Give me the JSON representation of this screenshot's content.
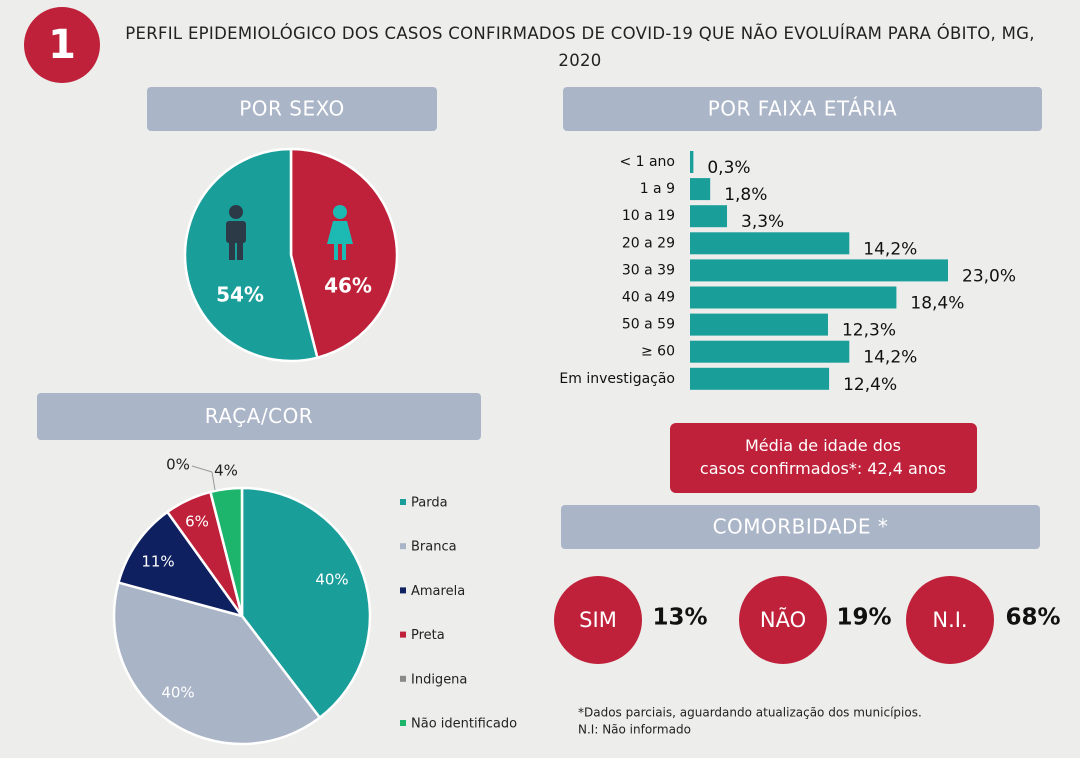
{
  "header": {
    "number": "1",
    "title": "PERFIL EPIDEMIOLÓGICO DOS CASOS CONFIRMADOS DE COVID-19 QUE NÃO EVOLUÍRAM PARA ÓBITO, MG, 2020"
  },
  "chart_data": [
    {
      "type": "pie",
      "title": "POR SEXO",
      "values": [
        46,
        54
      ],
      "value_labels": [
        "46%",
        "54%"
      ],
      "colors": [
        "#c0213a",
        "#1a9e9a"
      ]
    },
    {
      "type": "barh",
      "title": "POR FAIXA ETÁRIA",
      "categories": [
        "< 1 ano",
        "1 a 9",
        "10 a 19",
        "20 a 29",
        "30 a 39",
        "40 a 49",
        "50 a 59",
        "≥ 60",
        "Em investigação"
      ],
      "values": [
        0.3,
        1.8,
        3.3,
        14.2,
        23.0,
        18.4,
        12.3,
        14.2,
        12.4
      ],
      "value_labels": [
        "0,3%",
        "1,8%",
        "3,3%",
        "14,2%",
        "23,0%",
        "18,4%",
        "12,3%",
        "14,2%",
        "12,4%"
      ],
      "color": "#1a9e9a"
    },
    {
      "type": "pie",
      "title": "RAÇA/COR",
      "categories": [
        "Parda",
        "Branca",
        "Amarela",
        "Preta",
        "Indigena",
        "Não identificado"
      ],
      "values": [
        40,
        40,
        11,
        6,
        0,
        4
      ],
      "value_labels": [
        "40%",
        "40%",
        "11%",
        "6%",
        "0%",
        "4%"
      ],
      "colors": [
        "#1a9e9a",
        "#a9b4c6",
        "#0f2060",
        "#c0213a",
        "#8a8a8a",
        "#1db56b"
      ],
      "legend": "right"
    }
  ],
  "mean_age": "Média de idade dos casos confirmados*: 42,4 anos",
  "comorbidity": {
    "title": "COMORBIDADE *",
    "items": [
      {
        "label": "SIM",
        "value": "13%"
      },
      {
        "label": "NÃO",
        "value": "19%"
      },
      {
        "label": "N.I.",
        "value": "68%"
      }
    ]
  },
  "footnotes": [
    "*Dados parciais, aguardando atualização dos municípios.",
    "N.I:  Não informado"
  ]
}
